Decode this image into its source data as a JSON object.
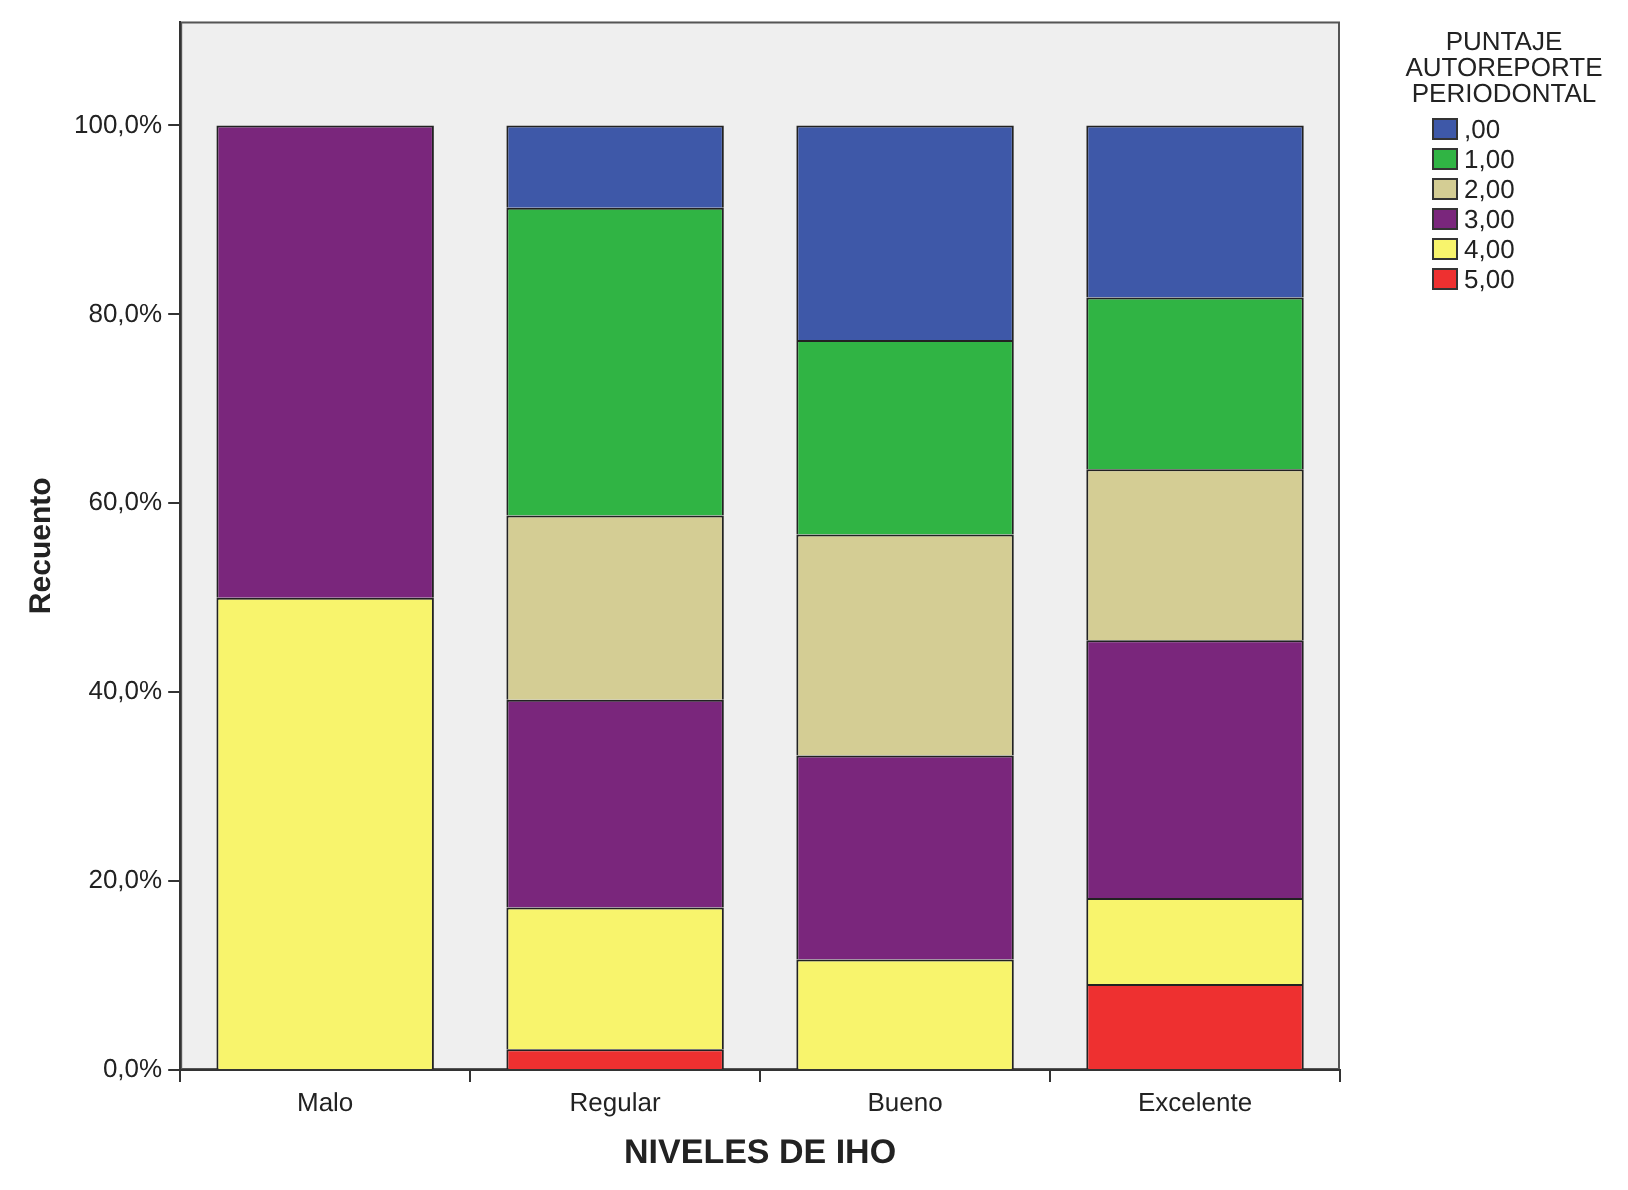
{
  "chart_data": {
    "type": "bar",
    "stacked": true,
    "xlabel": "NIVELES DE IHO",
    "ylabel": "Recuento",
    "legend_title": "PUNTAJE AUTOREPORTE PERIODONTAL",
    "legend": "top right",
    "grid": false,
    "categories": [
      "Malo",
      "Regular",
      "Bueno",
      "Excelente"
    ],
    "ylim": [
      0,
      111
    ],
    "yticks": [
      {
        "value": 0,
        "label": "0,0%"
      },
      {
        "value": 20,
        "label": "20,0%"
      },
      {
        "value": 40,
        "label": "40,0%"
      },
      {
        "value": 60,
        "label": "60,0%"
      },
      {
        "value": 80,
        "label": "80,0%"
      },
      {
        "value": 100,
        "label": "100,0%"
      }
    ],
    "series": [
      {
        "name": "5,00",
        "color": "#ee3030",
        "values": [
          null,
          2.2,
          null,
          9.1
        ]
      },
      {
        "name": "4,00",
        "color": "#f8f46c",
        "values": [
          50,
          15,
          11.7,
          9.1
        ]
      },
      {
        "name": "3,00",
        "color": "#7a267c",
        "values": [
          50,
          22,
          21.6,
          27.3
        ]
      },
      {
        "name": "2,00",
        "color": "#d4cd94",
        "values": [
          null,
          19.5,
          23.4,
          18.1
        ]
      },
      {
        "name": "1,00",
        "color": "#30b444",
        "values": [
          null,
          32.6,
          20.6,
          18.2
        ]
      },
      {
        "name": ",00",
        "color": "#3e58a8",
        "values": [
          null,
          8.7,
          22.7,
          18.2
        ]
      }
    ]
  }
}
